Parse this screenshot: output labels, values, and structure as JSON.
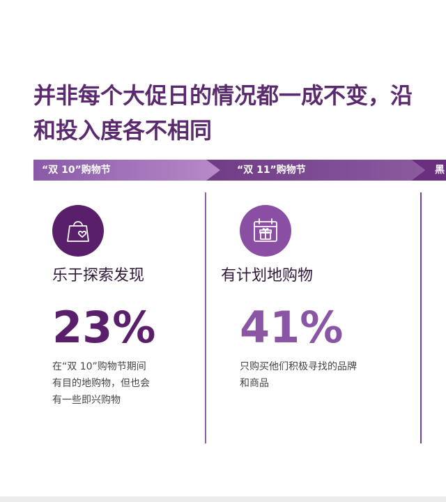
{
  "headline": {
    "line1": "并非每个大促日的情况都一成不变，",
    "line1_cut": "沿",
    "line2": "和投入度各不相同"
  },
  "banners": [
    {
      "label": "“双 10”购物节"
    },
    {
      "label": "“双 11”购物节"
    },
    {
      "label": "黑"
    }
  ],
  "columns": [
    {
      "icon": "shopping-bag-heart-icon",
      "title": "乐于探索发现",
      "stat": "23%",
      "desc": [
        "在“双 10”购物节期间",
        "有目的地购物，但也会",
        "有一些即兴购物"
      ]
    },
    {
      "icon": "calendar-gift-icon",
      "title": "有计划地购物",
      "stat": "41%",
      "desc": [
        "只购买他们积极寻找的品牌",
        "和商品"
      ]
    }
  ],
  "colors": {
    "headline": "#5b2a6e",
    "banner_1": "#8a5aa8",
    "banner_2": "#6f3c85",
    "icon_dark": "#5a1f6a",
    "icon_light": "#8a4fa2",
    "stat_1": "#5a1f6a",
    "stat_2": "#8b55a6"
  }
}
